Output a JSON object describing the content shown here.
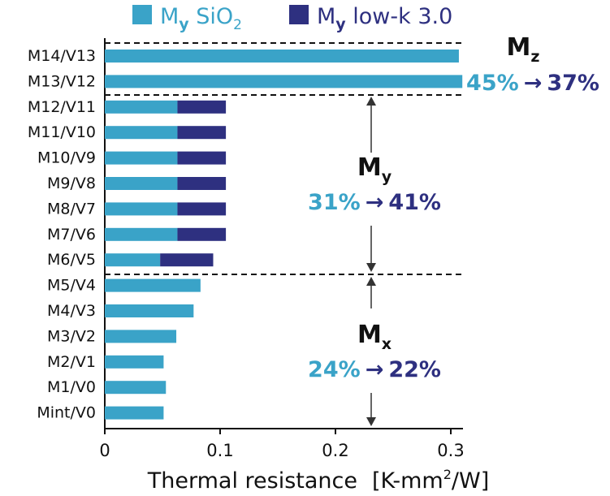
{
  "chart_data": {
    "type": "bar",
    "orientation": "horizontal",
    "stacked": true,
    "title": "",
    "xlabel": "Thermal resistance",
    "xlabel_unit_prefix": "[K-mm",
    "xlabel_unit_sup": "2",
    "xlabel_unit_suffix": "/W]",
    "ylabel": "",
    "xlim": [
      0,
      0.31
    ],
    "xticks": [
      "0",
      "0.1",
      "0.2",
      "0.3"
    ],
    "xtick_values": [
      0,
      0.1,
      0.2,
      0.3
    ],
    "categories": [
      "M14/V13",
      "M13/V12",
      "M12/V11",
      "M11/V10",
      "M10/V9",
      "M9/V8",
      "M8/V7",
      "M7/V6",
      "M6/V5",
      "M5/V4",
      "M4/V3",
      "M3/V2",
      "M2/V1",
      "M1/V0",
      "Mint/V0"
    ],
    "series": [
      {
        "name": "My SiO2",
        "legend_main": "M",
        "legend_sub": "y",
        "legend_rest": " SiO",
        "legend_rest_sub": "2",
        "color": "#3aa3c8",
        "values": [
          0.307,
          0.31,
          0.063,
          0.063,
          0.063,
          0.063,
          0.063,
          0.063,
          0.048,
          0.083,
          0.077,
          0.062,
          0.051,
          0.053,
          0.051
        ]
      },
      {
        "name": "My low-k 3.0",
        "legend_main": "M",
        "legend_sub": "y",
        "legend_rest": " low-k 3.0",
        "color": "#2e3080",
        "values": [
          0,
          0,
          0.042,
          0.042,
          0.042,
          0.042,
          0.042,
          0.042,
          0.046,
          0,
          0,
          0,
          0,
          0,
          0
        ]
      }
    ],
    "regions": [
      {
        "name": "M",
        "sub": "z",
        "from": "45%",
        "arrow": "→",
        "to": "37%",
        "rows": [
          0,
          1
        ]
      },
      {
        "name": "M",
        "sub": "y",
        "from": "31%",
        "arrow": "→",
        "to": "41%",
        "rows": [
          2,
          8
        ]
      },
      {
        "name": "M",
        "sub": "x",
        "from": "24%",
        "arrow": "→",
        "to": "22%",
        "rows": [
          9,
          14
        ]
      }
    ],
    "legend_position": "top"
  },
  "colors": {
    "sio2": "#3aa3c8",
    "lowk": "#2e3080",
    "text": "#111111"
  }
}
